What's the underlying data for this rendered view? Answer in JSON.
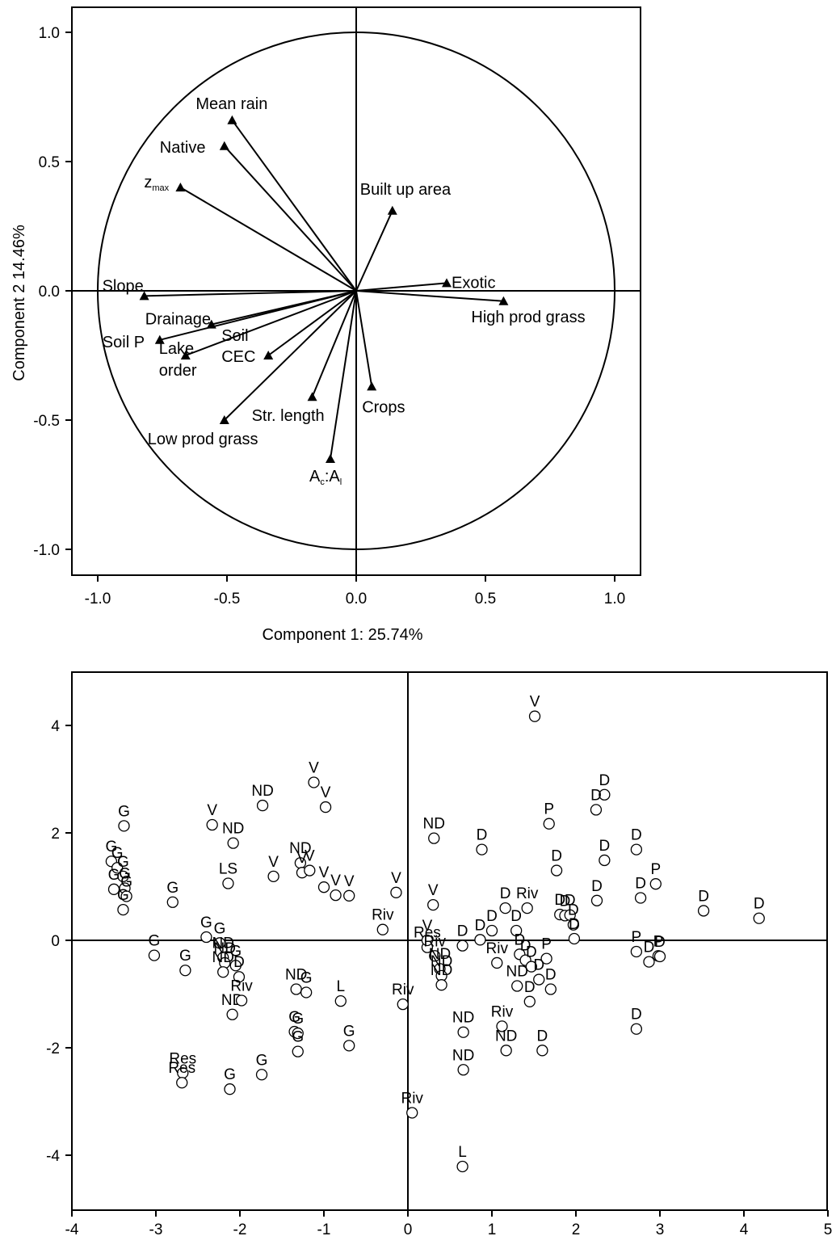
{
  "chart_data": [
    {
      "type": "scatter",
      "subtype": "pca-loading-plot",
      "xlabel": "Component 1: 25.74%",
      "ylabel": "Component 2 14.46%",
      "xlim": [
        -1.1,
        1.1
      ],
      "ylim": [
        -1.1,
        1.1
      ],
      "xticks": [
        "-1.0",
        "-0.5",
        "0.0",
        "0.5",
        "1.0"
      ],
      "yticks": [
        "-1.0",
        "-0.5",
        "0.0",
        "0.5",
        "1.0"
      ],
      "unit_circle": true,
      "zero_lines": true,
      "vectors": [
        {
          "label": "Mean rain",
          "x": -0.48,
          "y": 0.66
        },
        {
          "label": "Native",
          "x": -0.51,
          "y": 0.56
        },
        {
          "label": "z",
          "sub": "max",
          "x": -0.68,
          "y": 0.4
        },
        {
          "label": "Built up area",
          "x": 0.14,
          "y": 0.31
        },
        {
          "label": "Exotic",
          "x": 0.35,
          "y": 0.03
        },
        {
          "label": "High prod grass",
          "x": 0.57,
          "y": -0.04
        },
        {
          "label": "Slope",
          "x": -0.82,
          "y": -0.02
        },
        {
          "label": "Drainage",
          "x": -0.56,
          "y": -0.13
        },
        {
          "label": "Soil P",
          "x": -0.76,
          "y": -0.19
        },
        {
          "label": "Lake",
          "label2": "order",
          "x": -0.66,
          "y": -0.25
        },
        {
          "label": "Soil",
          "label2": "CEC",
          "x": -0.34,
          "y": -0.25
        },
        {
          "label": "Str. length",
          "x": -0.17,
          "y": -0.41
        },
        {
          "label": "Crops",
          "x": 0.06,
          "y": -0.37
        },
        {
          "label": "Low prod grass",
          "x": -0.51,
          "y": -0.5
        },
        {
          "label": "A",
          "sub": "c",
          "label_mid": ":A",
          "sub2": "l",
          "x": -0.1,
          "y": -0.65
        }
      ]
    },
    {
      "type": "scatter",
      "subtype": "pca-score-plot",
      "xlim": [
        -4,
        5
      ],
      "ylim": [
        -5,
        5
      ],
      "xticks": [
        "-4",
        "-3",
        "-2",
        "-1",
        "0",
        "1",
        "2",
        "3",
        "4",
        "5"
      ],
      "yticks": [
        "4",
        "2",
        "0",
        "-2",
        "-4"
      ],
      "zero_lines": true,
      "points": [
        {
          "label": "V",
          "x": 1.51,
          "y": 4.17
        },
        {
          "label": "D",
          "x": 2.34,
          "y": 2.71
        },
        {
          "label": "D",
          "x": 2.24,
          "y": 2.43
        },
        {
          "label": "P",
          "x": 1.68,
          "y": 2.17
        },
        {
          "label": "D",
          "x": 2.72,
          "y": 1.69
        },
        {
          "label": "D",
          "x": 2.34,
          "y": 1.49
        },
        {
          "label": "P",
          "x": 2.95,
          "y": 1.05
        },
        {
          "label": "D",
          "x": 2.77,
          "y": 0.79
        },
        {
          "label": "D",
          "x": 2.25,
          "y": 0.74
        },
        {
          "label": "D",
          "x": 0.88,
          "y": 1.69
        },
        {
          "label": "D",
          "x": 1.77,
          "y": 1.3
        },
        {
          "label": "ND",
          "x": 0.31,
          "y": 1.9
        },
        {
          "label": "D",
          "x": 3.52,
          "y": 0.55
        },
        {
          "label": "D",
          "x": 4.18,
          "y": 0.41
        },
        {
          "label": "D",
          "x": 1.16,
          "y": 0.6
        },
        {
          "label": "Riv",
          "x": 1.42,
          "y": 0.6
        },
        {
          "label": "D",
          "x": 1.81,
          "y": 0.48
        },
        {
          "label": "D",
          "x": 1.87,
          "y": 0.46
        },
        {
          "label": "D",
          "x": 1.93,
          "y": 0.47
        },
        {
          "label": "D",
          "x": 1.97,
          "y": 0.29
        },
        {
          "label": "D",
          "x": 1.98,
          "y": 0.03
        },
        {
          "label": "D",
          "x": 1.0,
          "y": 0.18
        },
        {
          "label": "D",
          "x": 1.29,
          "y": 0.18
        },
        {
          "label": "D",
          "x": 0.86,
          "y": 0.01
        },
        {
          "label": "D",
          "x": 0.65,
          "y": -0.1
        },
        {
          "label": "Riv",
          "x": 1.06,
          "y": -0.42
        },
        {
          "label": "D",
          "x": 1.33,
          "y": -0.26
        },
        {
          "label": "D",
          "x": 1.4,
          "y": -0.37
        },
        {
          "label": "D",
          "x": 1.47,
          "y": -0.49
        },
        {
          "label": "P",
          "x": 1.65,
          "y": -0.34
        },
        {
          "label": "D",
          "x": 1.7,
          "y": -0.91
        },
        {
          "label": "D",
          "x": 1.56,
          "y": -0.73
        },
        {
          "label": "ND",
          "x": 1.3,
          "y": -0.85
        },
        {
          "label": "D",
          "x": 1.45,
          "y": -1.14
        },
        {
          "label": "Riv",
          "x": 1.12,
          "y": -1.6
        },
        {
          "label": "P",
          "x": 2.72,
          "y": -0.21
        },
        {
          "label": "D",
          "x": 2.87,
          "y": -0.4
        },
        {
          "label": "P",
          "x": 2.98,
          "y": -0.29
        },
        {
          "label": "D",
          "x": 3.0,
          "y": -0.3
        },
        {
          "label": "D",
          "x": 2.72,
          "y": -1.65
        },
        {
          "label": "D",
          "x": 1.6,
          "y": -2.05
        },
        {
          "label": "ND",
          "x": 1.17,
          "y": -2.05
        },
        {
          "label": "ND",
          "x": 0.66,
          "y": -1.71
        },
        {
          "label": "ND",
          "x": 0.66,
          "y": -2.41
        },
        {
          "label": "L",
          "x": 0.65,
          "y": -4.21
        },
        {
          "label": "Riv",
          "x": 0.05,
          "y": -3.21
        },
        {
          "label": "Riv",
          "x": -0.06,
          "y": -1.19
        },
        {
          "label": "Res",
          "x": 0.23,
          "y": -0.13
        },
        {
          "label": "V",
          "x": 0.23,
          "y": 0.0
        },
        {
          "label": "Riv",
          "x": 0.32,
          "y": -0.29
        },
        {
          "label": "ND",
          "x": 0.38,
          "y": -0.53
        },
        {
          "label": "ND",
          "x": 0.4,
          "y": -0.66
        },
        {
          "label": "ND",
          "x": 0.4,
          "y": -0.83
        },
        {
          "label": "V",
          "x": 0.3,
          "y": 0.66
        },
        {
          "label": "V",
          "x": -0.14,
          "y": 0.89
        },
        {
          "label": "Riv",
          "x": -0.3,
          "y": 0.2
        },
        {
          "label": "L",
          "x": -0.8,
          "y": -1.13
        },
        {
          "label": "G",
          "x": -0.7,
          "y": -1.96
        },
        {
          "label": "V",
          "x": -1.12,
          "y": 2.94
        },
        {
          "label": "V",
          "x": -0.98,
          "y": 2.48
        },
        {
          "label": "ND",
          "x": -1.73,
          "y": 2.51
        },
        {
          "label": "ND",
          "x": -1.28,
          "y": 1.44
        },
        {
          "label": "V",
          "x": -1.26,
          "y": 1.26
        },
        {
          "label": "V",
          "x": -1.17,
          "y": 1.3
        },
        {
          "label": "V",
          "x": -1.0,
          "y": 0.99
        },
        {
          "label": "V",
          "x": -0.86,
          "y": 0.84
        },
        {
          "label": "V",
          "x": -0.7,
          "y": 0.83
        },
        {
          "label": "V",
          "x": -1.6,
          "y": 1.19
        },
        {
          "label": "V",
          "x": -2.33,
          "y": 2.15
        },
        {
          "label": "ND",
          "x": -2.08,
          "y": 1.81
        },
        {
          "label": "LS",
          "x": -2.14,
          "y": 1.06
        },
        {
          "label": "G",
          "x": -3.38,
          "y": 2.13
        },
        {
          "label": "G",
          "x": -3.53,
          "y": 1.47
        },
        {
          "label": "G",
          "x": -3.46,
          "y": 1.35
        },
        {
          "label": "G",
          "x": -3.39,
          "y": 1.19
        },
        {
          "label": "G",
          "x": -3.37,
          "y": 0.97
        },
        {
          "label": "G",
          "x": -3.5,
          "y": 0.95
        },
        {
          "label": "G",
          "x": -3.35,
          "y": 0.82
        },
        {
          "label": "G",
          "x": -3.39,
          "y": 0.57
        },
        {
          "label": "G",
          "x": -2.8,
          "y": 0.71
        },
        {
          "label": "G",
          "x": -3.02,
          "y": -0.28
        },
        {
          "label": "G",
          "x": -2.65,
          "y": -0.56
        },
        {
          "label": "G",
          "x": -2.4,
          "y": 0.06
        },
        {
          "label": "G",
          "x": -2.24,
          "y": -0.05
        },
        {
          "label": "ND",
          "x": -2.2,
          "y": -0.32
        },
        {
          "label": "ND",
          "x": -2.18,
          "y": -0.42
        },
        {
          "label": "ND",
          "x": -2.2,
          "y": -0.59
        },
        {
          "label": "G",
          "x": -2.05,
          "y": -0.47
        },
        {
          "label": "D",
          "x": -2.01,
          "y": -0.68
        },
        {
          "label": "ND",
          "x": -2.09,
          "y": -1.38
        },
        {
          "label": "Riv",
          "x": -1.98,
          "y": -1.12
        },
        {
          "label": "ND",
          "x": -1.33,
          "y": -0.91
        },
        {
          "label": "G",
          "x": -1.21,
          "y": -0.97
        },
        {
          "label": "G",
          "x": -1.35,
          "y": -1.7
        },
        {
          "label": "G",
          "x": -1.31,
          "y": -1.73
        },
        {
          "label": "G",
          "x": -1.31,
          "y": -2.07
        },
        {
          "label": "G",
          "x": -1.74,
          "y": -2.5
        },
        {
          "label": "G",
          "x": -2.12,
          "y": -2.77
        },
        {
          "label": "Res",
          "x": -2.68,
          "y": -2.47
        },
        {
          "label": "Res",
          "x": -2.69,
          "y": -2.65
        }
      ]
    }
  ]
}
